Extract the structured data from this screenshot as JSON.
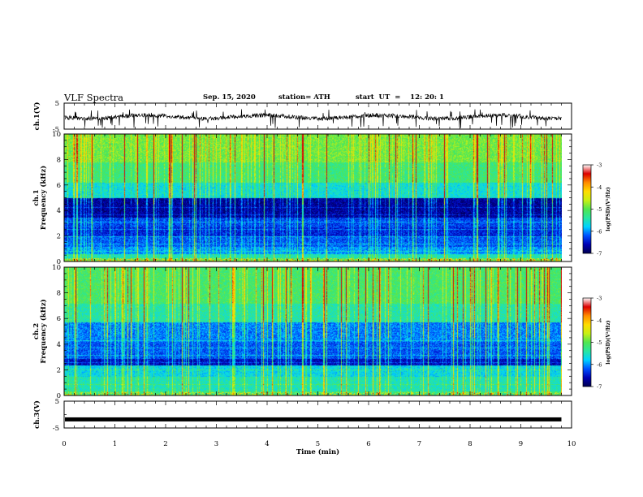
{
  "header": {
    "title": "VLF Spectra",
    "date": "Sep. 15, 2020",
    "station": "station= ATH",
    "start_ut": "start  UT  =    12: 20: 1"
  },
  "chart_data": [
    {
      "type": "line",
      "panel": "ch1-waveform",
      "ylabel": "ch.1(V)",
      "yticks": [
        "5",
        "-5"
      ],
      "ylim": [
        -5,
        5
      ],
      "xlim": [
        0,
        10
      ],
      "baseline": -0.3
    },
    {
      "type": "heatmap",
      "panel": "ch1-spectrogram",
      "ylabel_top": "ch.1",
      "ylabel": "Frequency  (kHz)",
      "ylim": [
        0,
        10
      ],
      "yticks": [
        "0",
        "2",
        "4",
        "6",
        "8",
        "10"
      ],
      "xlim": [
        0,
        10
      ],
      "colorbar": {
        "label": "log(PSD)(V²/Hz)",
        "range": [
          -7,
          -3
        ],
        "ticks": [
          "-3",
          "-4",
          "-5",
          "-6",
          "-7"
        ]
      }
    },
    {
      "type": "heatmap",
      "panel": "ch2-spectrogram",
      "ylabel_top": "ch.2",
      "ylabel": "Frequency  (kHz)",
      "ylim": [
        0,
        10
      ],
      "yticks": [
        "0",
        "2",
        "4",
        "6",
        "8",
        "10"
      ],
      "xlim": [
        0,
        10
      ],
      "colorbar": {
        "label": "log(PSD)(V²/Hz)",
        "range": [
          -7,
          -3
        ],
        "ticks": [
          "-3",
          "-4",
          "-5",
          "-6",
          "-7"
        ]
      }
    },
    {
      "type": "line",
      "panel": "ch3-waveform",
      "ylabel": "ch.3(V)",
      "yticks": [
        "5",
        "-5"
      ],
      "ylim": [
        -5,
        5
      ],
      "xlim": [
        0,
        10
      ],
      "baseline": -1.8
    }
  ],
  "xaxis": {
    "label": "Time  (min)",
    "ticks": [
      "0",
      "1",
      "2",
      "3",
      "4",
      "5",
      "6",
      "7",
      "8",
      "9",
      "10"
    ],
    "range": [
      0,
      10
    ],
    "data_end": 9.8
  },
  "colors": {
    "colormap": [
      "#000050",
      "#0000b4",
      "#0050ff",
      "#00d2ff",
      "#28e6a0",
      "#50e650",
      "#c8f014",
      "#ffdc00",
      "#ff8c00",
      "#dc0000",
      "#ffffff"
    ]
  }
}
